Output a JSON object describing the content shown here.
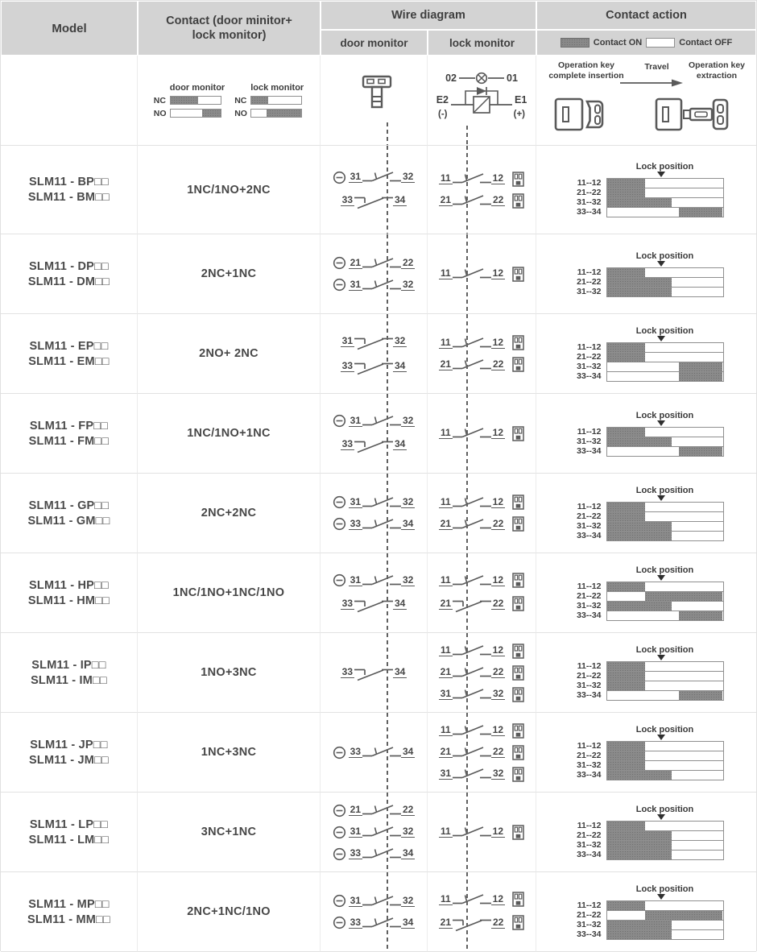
{
  "header": {
    "model": "Model",
    "contact": "Contact (door minitor+ lock monitor)",
    "wire": "Wire diagram",
    "door": "door monitor",
    "lock": "lock monitor",
    "action": "Contact action",
    "legend_on": "Contact ON",
    "legend_off": "Contact OFF"
  },
  "explain": {
    "contact_demo": {
      "door_label": "door monitor",
      "lock_label": "lock monitor",
      "rows": [
        {
          "label": "NC",
          "door": [
            0,
            55
          ],
          "lock": [
            0,
            34
          ]
        },
        {
          "label": "NO",
          "door": [
            63,
            100
          ],
          "lock": [
            30,
            100
          ]
        }
      ]
    },
    "lock_circuit": {
      "n02": "02",
      "n01": "01",
      "e2": "E2",
      "e1": "E1",
      "neg": "(-)",
      "pos": "(+)"
    },
    "action_demo": {
      "left1": "Operation key",
      "left2": "complete insertion",
      "mid": "Travel",
      "right1": "Operation key",
      "right2": "extraction"
    },
    "lock_position": "Lock position",
    "marker_pct": 47
  },
  "rows": [
    {
      "models": [
        "SLM11 - BP□□",
        "SLM11 - BM□□"
      ],
      "contact": "1NC/1NO+2NC",
      "door": [
        {
          "a": "31",
          "b": "32",
          "type": "nc",
          "circle": true
        },
        {
          "a": "33",
          "b": "34",
          "type": "no",
          "circle": false
        }
      ],
      "lock": [
        {
          "a": "11",
          "b": "12",
          "type": "nc"
        },
        {
          "a": "21",
          "b": "22",
          "type": "nc"
        }
      ],
      "bars": [
        {
          "label": "11--12",
          "on": [
            0,
            33
          ]
        },
        {
          "label": "21--22",
          "on": [
            0,
            33
          ]
        },
        {
          "label": "31--32",
          "on": [
            0,
            56
          ]
        },
        {
          "label": "33--34",
          "on": [
            62,
            100
          ]
        }
      ]
    },
    {
      "models": [
        "SLM11 - DP□□",
        "SLM11 - DM□□"
      ],
      "contact": "2NC+1NC",
      "door": [
        {
          "a": "21",
          "b": "22",
          "type": "nc",
          "circle": true
        },
        {
          "a": "31",
          "b": "32",
          "type": "nc",
          "circle": true
        }
      ],
      "lock": [
        {
          "a": "11",
          "b": "12",
          "type": "nc"
        }
      ],
      "bars": [
        {
          "label": "11--12",
          "on": [
            0,
            33
          ]
        },
        {
          "label": "21--22",
          "on": [
            0,
            56
          ]
        },
        {
          "label": "31--32",
          "on": [
            0,
            56
          ]
        }
      ]
    },
    {
      "models": [
        "SLM11 - EP□□",
        "SLM11 - EM□□"
      ],
      "contact": "2NO+ 2NC",
      "door": [
        {
          "a": "31",
          "b": "32",
          "type": "no",
          "circle": false
        },
        {
          "a": "33",
          "b": "34",
          "type": "no",
          "circle": false
        }
      ],
      "lock": [
        {
          "a": "11",
          "b": "12",
          "type": "nc"
        },
        {
          "a": "21",
          "b": "22",
          "type": "nc"
        }
      ],
      "bars": [
        {
          "label": "11--12",
          "on": [
            0,
            33
          ]
        },
        {
          "label": "21--22",
          "on": [
            0,
            33
          ]
        },
        {
          "label": "31--32",
          "on": [
            62,
            100
          ]
        },
        {
          "label": "33--34",
          "on": [
            62,
            100
          ]
        }
      ]
    },
    {
      "models": [
        "SLM11 - FP□□",
        "SLM11 - FM□□"
      ],
      "contact": "1NC/1NO+1NC",
      "door": [
        {
          "a": "31",
          "b": "32",
          "type": "nc",
          "circle": true
        },
        {
          "a": "33",
          "b": "34",
          "type": "no",
          "circle": false
        }
      ],
      "lock": [
        {
          "a": "11",
          "b": "12",
          "type": "nc"
        }
      ],
      "bars": [
        {
          "label": "11--12",
          "on": [
            0,
            33
          ]
        },
        {
          "label": "31--32",
          "on": [
            0,
            56
          ]
        },
        {
          "label": "33--34",
          "on": [
            62,
            100
          ]
        }
      ]
    },
    {
      "models": [
        "SLM11 - GP□□",
        "SLM11 - GM□□"
      ],
      "contact": "2NC+2NC",
      "door": [
        {
          "a": "31",
          "b": "32",
          "type": "nc",
          "circle": true
        },
        {
          "a": "33",
          "b": "34",
          "type": "nc",
          "circle": true
        }
      ],
      "lock": [
        {
          "a": "11",
          "b": "12",
          "type": "nc"
        },
        {
          "a": "21",
          "b": "22",
          "type": "nc"
        }
      ],
      "bars": [
        {
          "label": "11--12",
          "on": [
            0,
            33
          ]
        },
        {
          "label": "21--22",
          "on": [
            0,
            33
          ]
        },
        {
          "label": "31--32",
          "on": [
            0,
            56
          ]
        },
        {
          "label": "33--34",
          "on": [
            0,
            56
          ]
        }
      ]
    },
    {
      "models": [
        "SLM11 - HP□□",
        "SLM11 - HM□□"
      ],
      "contact": "1NC/1NO+1NC/1NO",
      "door": [
        {
          "a": "31",
          "b": "32",
          "type": "nc",
          "circle": true
        },
        {
          "a": "33",
          "b": "34",
          "type": "no",
          "circle": false
        }
      ],
      "lock": [
        {
          "a": "11",
          "b": "12",
          "type": "nc"
        },
        {
          "a": "21",
          "b": "22",
          "type": "no"
        }
      ],
      "bars": [
        {
          "label": "11--12",
          "on": [
            0,
            33
          ]
        },
        {
          "label": "21--22",
          "on": [
            33,
            100
          ]
        },
        {
          "label": "31--32",
          "on": [
            0,
            56
          ]
        },
        {
          "label": "33--34",
          "on": [
            62,
            100
          ]
        }
      ]
    },
    {
      "models": [
        "SLM11 - IP□□",
        "SLM11 - IM□□"
      ],
      "contact": "1NO+3NC",
      "door": [
        {
          "a": "33",
          "b": "34",
          "type": "no",
          "circle": false
        }
      ],
      "lock": [
        {
          "a": "11",
          "b": "12",
          "type": "nc"
        },
        {
          "a": "21",
          "b": "22",
          "type": "nc"
        },
        {
          "a": "31",
          "b": "32",
          "type": "nc"
        }
      ],
      "bars": [
        {
          "label": "11--12",
          "on": [
            0,
            33
          ]
        },
        {
          "label": "21--22",
          "on": [
            0,
            33
          ]
        },
        {
          "label": "31--32",
          "on": [
            0,
            33
          ]
        },
        {
          "label": "33--34",
          "on": [
            62,
            100
          ]
        }
      ]
    },
    {
      "models": [
        "SLM11 - JP□□",
        "SLM11 - JM□□"
      ],
      "contact": "1NC+3NC",
      "door": [
        {
          "a": "33",
          "b": "34",
          "type": "nc",
          "circle": true
        }
      ],
      "lock": [
        {
          "a": "11",
          "b": "12",
          "type": "nc"
        },
        {
          "a": "21",
          "b": "22",
          "type": "nc"
        },
        {
          "a": "31",
          "b": "32",
          "type": "nc"
        }
      ],
      "bars": [
        {
          "label": "11--12",
          "on": [
            0,
            33
          ]
        },
        {
          "label": "21--22",
          "on": [
            0,
            33
          ]
        },
        {
          "label": "31--32",
          "on": [
            0,
            33
          ]
        },
        {
          "label": "33--34",
          "on": [
            0,
            56
          ]
        }
      ]
    },
    {
      "models": [
        "SLM11 - LP□□",
        "SLM11 - LM□□"
      ],
      "contact": "3NC+1NC",
      "door": [
        {
          "a": "21",
          "b": "22",
          "type": "nc",
          "circle": true
        },
        {
          "a": "31",
          "b": "32",
          "type": "nc",
          "circle": true
        },
        {
          "a": "33",
          "b": "34",
          "type": "nc",
          "circle": true
        }
      ],
      "lock": [
        {
          "a": "11",
          "b": "12",
          "type": "nc"
        }
      ],
      "bars": [
        {
          "label": "11--12",
          "on": [
            0,
            33
          ]
        },
        {
          "label": "21--22",
          "on": [
            0,
            56
          ]
        },
        {
          "label": "31--32",
          "on": [
            0,
            56
          ]
        },
        {
          "label": "33--34",
          "on": [
            0,
            56
          ]
        }
      ]
    },
    {
      "models": [
        "SLM11 - MP□□",
        "SLM11 - MM□□"
      ],
      "contact": "2NC+1NC/1NO",
      "door": [
        {
          "a": "31",
          "b": "32",
          "type": "nc",
          "circle": true
        },
        {
          "a": "33",
          "b": "34",
          "type": "nc",
          "circle": true
        }
      ],
      "lock": [
        {
          "a": "11",
          "b": "12",
          "type": "nc"
        },
        {
          "a": "21",
          "b": "22",
          "type": "no"
        }
      ],
      "bars": [
        {
          "label": "11--12",
          "on": [
            0,
            33
          ]
        },
        {
          "label": "21--22",
          "on": [
            33,
            100
          ]
        },
        {
          "label": "31--32",
          "on": [
            0,
            56
          ]
        },
        {
          "label": "33--34",
          "on": [
            0,
            56
          ]
        }
      ]
    }
  ]
}
